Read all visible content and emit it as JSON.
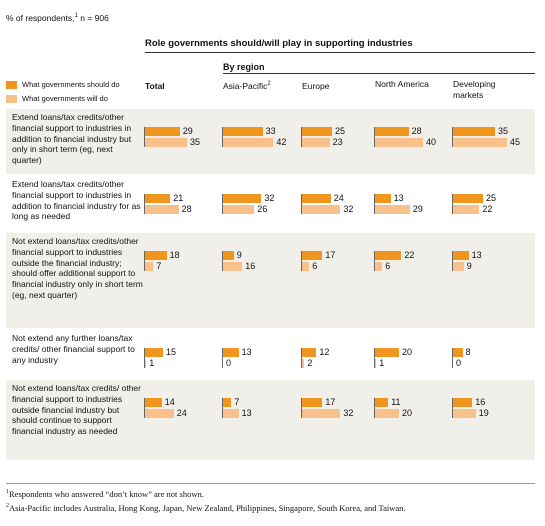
{
  "header": {
    "respondents_note": "% of respondents,",
    "respondents_sup": "1",
    "respondents_n": " n = 906",
    "title": "Role governments should/will play in supporting industries",
    "by_region": "By region"
  },
  "legend": [
    {
      "label": "What governments should do",
      "color": "#f0951e"
    },
    {
      "label": "What governments will do",
      "color": "#f8c08a"
    }
  ],
  "columns": [
    {
      "label": "Total",
      "sup": ""
    },
    {
      "label": "Asia-Pacific",
      "sup": "2"
    },
    {
      "label": "Europe",
      "sup": ""
    },
    {
      "label": "North America",
      "sup": ""
    },
    {
      "label": "Developing markets",
      "sup": ""
    }
  ],
  "chart_data": {
    "type": "bar",
    "title": "Role governments should/will play in supporting industries",
    "categories": [
      "Extend loans/tax credits/other financial support to industries in addition to financial industry but only in short term (eg, next quarter)",
      "Extend loans/tax credits/other financial support to industries in addition to financial industry for as long as needed",
      "Not extend loans/tax credits/other financial support to industries outside the financial industry; should offer additional support to financial industry only in short term (eg, next quarter)",
      "Not extend any further loans/tax credits/ other financial support to any industry",
      "Not extend loans/tax credits/ other financial support to industries outside financial industry but should continue to support financial industry as needed"
    ],
    "groups": [
      "Total",
      "Asia-Pacific",
      "Europe",
      "North America",
      "Developing markets"
    ],
    "series": [
      {
        "name": "What governments should do",
        "color": "#f0951e",
        "values": [
          [
            29,
            33,
            25,
            28,
            35
          ],
          [
            21,
            32,
            24,
            13,
            25
          ],
          [
            18,
            9,
            17,
            22,
            13
          ],
          [
            15,
            13,
            12,
            20,
            8
          ],
          [
            14,
            7,
            17,
            11,
            16
          ]
        ]
      },
      {
        "name": "What governments will do",
        "color": "#f8c08a",
        "values": [
          [
            35,
            42,
            23,
            40,
            45
          ],
          [
            28,
            26,
            32,
            29,
            22
          ],
          [
            7,
            16,
            6,
            6,
            9
          ],
          [
            1,
            0,
            2,
            1,
            0
          ],
          [
            24,
            13,
            32,
            20,
            19
          ]
        ]
      }
    ]
  },
  "footnotes": [
    {
      "sup": "1",
      "text": "Respondents who answered “don’t know” are not shown."
    },
    {
      "sup": "2",
      "text": "Asia-Pacific includes Australia, Hong Kong, Japan, New Zealand, Philippines, Singapore, South Korea, and Taiwan."
    }
  ]
}
